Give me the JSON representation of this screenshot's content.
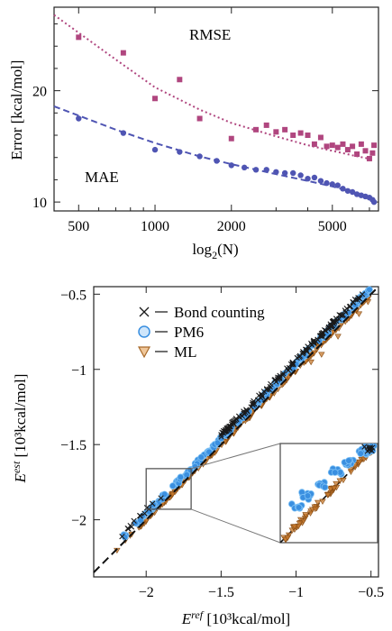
{
  "chart_data": [
    {
      "type": "scatter",
      "title": "",
      "xlabel": "log",
      "xlabel_sub": "2",
      "xlabel_tail": "(N)",
      "ylabel": "Error [kcal/mol]",
      "xscale": "log",
      "xlim": [
        400,
        7600
      ],
      "ylim": [
        9.2,
        27.5
      ],
      "xticks": [
        500,
        1000,
        2000,
        5000
      ],
      "xtick_labels": [
        "500",
        "1000",
        "2000",
        "5000"
      ],
      "yticks": [
        10,
        20
      ],
      "ytick_labels": [
        "10",
        "20"
      ],
      "annotations": [
        "RMSE",
        "MAE"
      ],
      "series": [
        {
          "name": "RMSE",
          "color": "#b0467f",
          "marker": "square",
          "points": [
            [
              500,
              24.8
            ],
            [
              750,
              23.4
            ],
            [
              1000,
              19.3
            ],
            [
              1250,
              21.0
            ],
            [
              1500,
              17.5
            ],
            [
              2000,
              15.7
            ],
            [
              2500,
              16.5
            ],
            [
              2750,
              16.9
            ],
            [
              3000,
              16.3
            ],
            [
              3250,
              16.5
            ],
            [
              3500,
              16.0
            ],
            [
              3750,
              16.2
            ],
            [
              4000,
              16.0
            ],
            [
              4250,
              15.2
            ],
            [
              4500,
              15.8
            ],
            [
              4750,
              15.0
            ],
            [
              5000,
              15.1
            ],
            [
              5250,
              14.9
            ],
            [
              5500,
              15.2
            ],
            [
              5750,
              14.7
            ],
            [
              6000,
              15.0
            ],
            [
              6250,
              14.3
            ],
            [
              6500,
              15.2
            ],
            [
              6750,
              14.6
            ],
            [
              7000,
              13.9
            ],
            [
              7200,
              14.4
            ],
            [
              7300,
              15.1
            ]
          ],
          "fit": [
            [
              400,
              26.8
            ],
            [
              700,
              22.8
            ],
            [
              1000,
              20.3
            ],
            [
              1500,
              18.3
            ],
            [
              2000,
              17.1
            ],
            [
              3000,
              15.9
            ],
            [
              4000,
              15.1
            ],
            [
              5000,
              14.6
            ],
            [
              6000,
              14.2
            ],
            [
              7300,
              13.8
            ]
          ]
        },
        {
          "name": "MAE",
          "color": "#4f55b3",
          "marker": "circle",
          "points": [
            [
              500,
              17.5
            ],
            [
              750,
              16.2
            ],
            [
              1000,
              14.7
            ],
            [
              1250,
              14.5
            ],
            [
              1500,
              14.1
            ],
            [
              1750,
              13.7
            ],
            [
              2000,
              13.3
            ],
            [
              2250,
              13.1
            ],
            [
              2500,
              12.9
            ],
            [
              2750,
              12.9
            ],
            [
              3000,
              12.7
            ],
            [
              3250,
              12.6
            ],
            [
              3500,
              12.6
            ],
            [
              3750,
              12.4
            ],
            [
              4000,
              12.1
            ],
            [
              4250,
              12.2
            ],
            [
              4500,
              11.9
            ],
            [
              4750,
              11.7
            ],
            [
              5000,
              11.6
            ],
            [
              5250,
              11.5
            ],
            [
              5500,
              11.2
            ],
            [
              5750,
              11.0
            ],
            [
              6000,
              10.9
            ],
            [
              6250,
              10.7
            ],
            [
              6500,
              10.6
            ],
            [
              6750,
              10.5
            ],
            [
              7000,
              10.4
            ],
            [
              7200,
              10.2
            ],
            [
              7300,
              10.0
            ]
          ],
          "fit": [
            [
              400,
              18.6
            ],
            [
              700,
              16.5
            ],
            [
              1000,
              15.3
            ],
            [
              1500,
              14.1
            ],
            [
              2000,
              13.4
            ],
            [
              3000,
              12.5
            ],
            [
              4000,
              11.9
            ],
            [
              5000,
              11.4
            ],
            [
              6000,
              10.9
            ],
            [
              7300,
              10.3
            ]
          ]
        }
      ]
    },
    {
      "type": "scatter",
      "title": "",
      "xlabel_main": "E",
      "xlabel_sup": "ref",
      "xlabel_tail": " [10³kcal/mol]",
      "ylabel_main": "E",
      "ylabel_sup": "est",
      "ylabel_tail": " [10³kcal/mol]",
      "xlim": [
        -2.35,
        -0.45
      ],
      "ylim": [
        -2.38,
        -0.45
      ],
      "xticks": [
        -2,
        -1.5,
        -1,
        -0.5
      ],
      "xtick_labels": [
        "−2",
        "−1.5",
        "−1",
        "−0.5"
      ],
      "yticks": [
        -2,
        -1.5,
        -1,
        -0.5
      ],
      "ytick_labels": [
        "−2",
        "−1.5",
        "−1",
        "−0.5"
      ],
      "legend_position": "top-left",
      "diagonal": "y = x",
      "zoom_region": {
        "x": [
          -2.0,
          -1.7
        ],
        "y": [
          -1.93,
          -1.66
        ]
      },
      "series": [
        {
          "name": "Bond counting",
          "marker": "x",
          "color": "#1a1a1a",
          "offset": 0.06
        },
        {
          "name": "PM6",
          "marker": "circle",
          "color": "#3a8fe0",
          "offset": 0.04
        },
        {
          "name": "ML",
          "marker": "triangle-down",
          "color": "#c77a2e",
          "offset": 0.0
        }
      ]
    }
  ]
}
